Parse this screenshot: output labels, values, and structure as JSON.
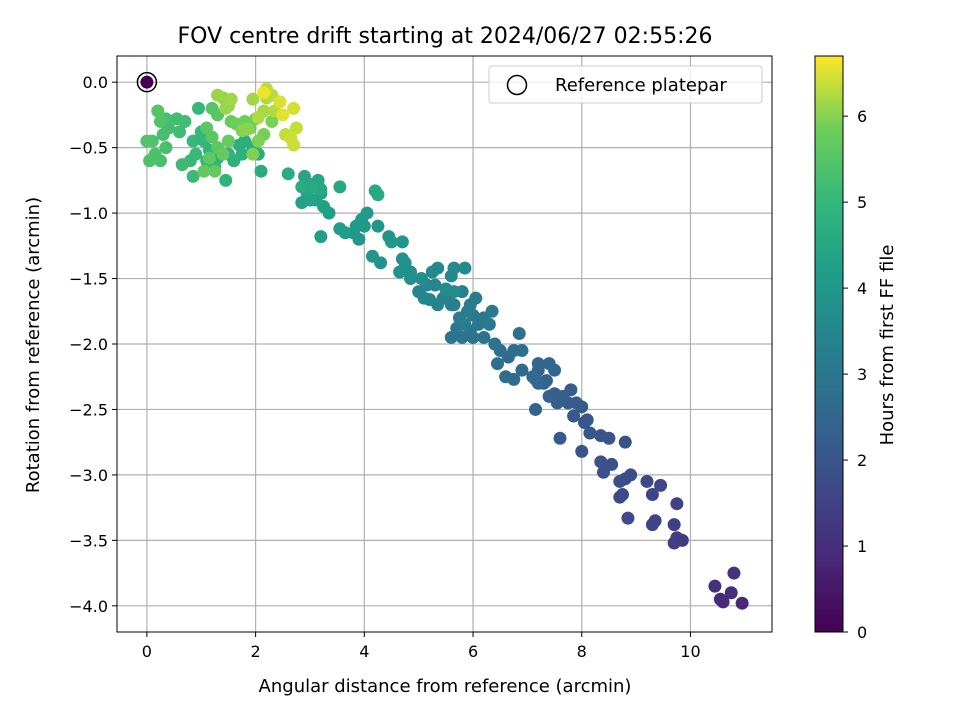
{
  "chart_data": {
    "type": "scatter",
    "title": "FOV centre drift starting at 2024/06/27 02:55:26",
    "xlabel": "Angular distance from reference (arcmin)",
    "ylabel": "Rotation from reference (arcmin)",
    "xlim": [
      -0.55,
      11.5
    ],
    "ylim": [
      -4.2,
      0.2
    ],
    "xticks": [
      0,
      2,
      4,
      6,
      8,
      10
    ],
    "yticks": [
      0.0,
      -0.5,
      -1.0,
      -1.5,
      -2.0,
      -2.5,
      -3.0,
      -3.5,
      -4.0
    ],
    "grid": true,
    "legend": {
      "position": "top-right",
      "entries": [
        "Reference platepar"
      ]
    },
    "colorbar": {
      "label": "Hours from first FF file",
      "range": [
        0,
        6.7
      ],
      "ticks": [
        0,
        1,
        2,
        3,
        4,
        5,
        6
      ],
      "colormap": "viridis"
    },
    "reference_point": {
      "x": 0,
      "y": 0,
      "hours": 0
    },
    "points": [
      [
        10.55,
        -3.95,
        0.9
      ],
      [
        10.6,
        -3.97,
        0.95
      ],
      [
        10.75,
        -3.9,
        1.0
      ],
      [
        10.95,
        -3.98,
        0.85
      ],
      [
        10.45,
        -3.85,
        1.05
      ],
      [
        10.8,
        -3.75,
        1.1
      ],
      [
        9.7,
        -3.52,
        1.35
      ],
      [
        9.75,
        -3.48,
        1.4
      ],
      [
        9.85,
        -3.5,
        1.38
      ],
      [
        9.7,
        -3.38,
        1.45
      ],
      [
        9.75,
        -3.22,
        1.5
      ],
      [
        9.3,
        -3.38,
        1.55
      ],
      [
        9.35,
        -3.35,
        1.52
      ],
      [
        9.3,
        -3.15,
        1.6
      ],
      [
        9.45,
        -3.08,
        1.62
      ],
      [
        9.2,
        -3.05,
        1.65
      ],
      [
        8.85,
        -3.33,
        1.7
      ],
      [
        8.7,
        -3.17,
        1.72
      ],
      [
        8.75,
        -3.15,
        1.75
      ],
      [
        8.7,
        -3.05,
        1.78
      ],
      [
        8.8,
        -3.03,
        1.8
      ],
      [
        8.9,
        -3.0,
        1.82
      ],
      [
        8.4,
        -2.98,
        1.85
      ],
      [
        8.55,
        -2.92,
        1.88
      ],
      [
        8.35,
        -2.9,
        1.9
      ],
      [
        8.8,
        -2.75,
        1.92
      ],
      [
        8.5,
        -2.72,
        1.95
      ],
      [
        8.35,
        -2.7,
        1.98
      ],
      [
        8.0,
        -2.82,
        2.0
      ],
      [
        8.15,
        -2.68,
        2.02
      ],
      [
        8.05,
        -2.6,
        2.05
      ],
      [
        8.1,
        -2.58,
        2.08
      ],
      [
        7.6,
        -2.72,
        2.1
      ],
      [
        7.85,
        -2.55,
        2.12
      ],
      [
        7.9,
        -2.45,
        2.15
      ],
      [
        8.0,
        -2.48,
        2.18
      ],
      [
        7.75,
        -2.45,
        2.2
      ],
      [
        7.8,
        -2.35,
        2.22
      ],
      [
        7.65,
        -2.4,
        2.25
      ],
      [
        7.5,
        -2.38,
        2.27
      ],
      [
        7.55,
        -2.45,
        2.3
      ],
      [
        7.15,
        -2.5,
        2.32
      ],
      [
        7.4,
        -2.4,
        2.35
      ],
      [
        7.3,
        -2.3,
        2.38
      ],
      [
        7.35,
        -2.28,
        2.4
      ],
      [
        7.2,
        -2.2,
        2.42
      ],
      [
        7.5,
        -2.2,
        2.45
      ],
      [
        7.4,
        -2.15,
        2.48
      ],
      [
        7.2,
        -2.15,
        2.5
      ],
      [
        7.2,
        -2.3,
        2.52
      ],
      [
        7.1,
        -2.25,
        2.55
      ],
      [
        7.15,
        -2.27,
        2.57
      ],
      [
        6.9,
        -2.2,
        2.6
      ],
      [
        6.75,
        -2.27,
        2.62
      ],
      [
        6.6,
        -2.25,
        2.65
      ],
      [
        6.65,
        -2.1,
        2.68
      ],
      [
        6.9,
        -2.05,
        2.7
      ],
      [
        6.75,
        -2.05,
        2.72
      ],
      [
        6.45,
        -2.15,
        2.75
      ],
      [
        6.5,
        -2.05,
        2.78
      ],
      [
        6.85,
        -1.92,
        2.8
      ],
      [
        6.4,
        -2.0,
        2.82
      ],
      [
        6.2,
        -1.95,
        2.85
      ],
      [
        6.0,
        -1.95,
        2.88
      ],
      [
        5.95,
        -1.9,
        2.9
      ],
      [
        5.8,
        -1.95,
        2.92
      ],
      [
        5.6,
        -1.95,
        2.95
      ],
      [
        5.7,
        -1.88,
        2.98
      ],
      [
        6.1,
        -1.85,
        3.0
      ],
      [
        6.2,
        -1.8,
        3.02
      ],
      [
        6.3,
        -1.85,
        3.05
      ],
      [
        6.35,
        -1.75,
        3.08
      ],
      [
        6.0,
        -1.78,
        3.1
      ],
      [
        5.95,
        -1.7,
        3.12
      ],
      [
        6.05,
        -1.65,
        3.15
      ],
      [
        5.9,
        -1.75,
        3.17
      ],
      [
        5.75,
        -1.8,
        3.2
      ],
      [
        5.85,
        -1.85,
        3.22
      ],
      [
        5.65,
        -1.7,
        3.25
      ],
      [
        5.55,
        -1.65,
        3.27
      ],
      [
        5.6,
        -1.7,
        3.3
      ],
      [
        5.8,
        -1.6,
        3.32
      ],
      [
        5.35,
        -1.7,
        3.35
      ],
      [
        5.45,
        -1.65,
        3.37
      ],
      [
        5.2,
        -1.66,
        3.4
      ],
      [
        5.1,
        -1.65,
        3.42
      ],
      [
        5.0,
        -1.6,
        3.45
      ],
      [
        5.3,
        -1.55,
        3.48
      ],
      [
        5.15,
        -1.55,
        3.5
      ],
      [
        5.25,
        -1.45,
        3.52
      ],
      [
        5.35,
        -1.42,
        3.55
      ],
      [
        5.6,
        -1.48,
        3.57
      ],
      [
        5.65,
        -1.42,
        3.6
      ],
      [
        5.85,
        -1.42,
        3.62
      ],
      [
        5.65,
        -1.6,
        3.65
      ],
      [
        5.5,
        -1.58,
        3.67
      ],
      [
        5.05,
        -1.5,
        3.7
      ],
      [
        4.85,
        -1.45,
        3.72
      ],
      [
        4.85,
        -1.5,
        3.75
      ],
      [
        4.65,
        -1.45,
        3.78
      ],
      [
        4.75,
        -1.38,
        3.8
      ],
      [
        4.7,
        -1.35,
        3.82
      ],
      [
        4.3,
        -1.38,
        3.85
      ],
      [
        4.15,
        -1.33,
        3.88
      ],
      [
        4.7,
        -1.22,
        3.9
      ],
      [
        4.45,
        -1.18,
        3.92
      ],
      [
        4.5,
        -1.22,
        3.95
      ],
      [
        4.25,
        -1.1,
        3.98
      ],
      [
        4.0,
        -1.1,
        4.0
      ],
      [
        3.9,
        -1.2,
        4.02
      ],
      [
        3.8,
        -1.15,
        4.05
      ],
      [
        3.85,
        -1.1,
        4.08
      ],
      [
        3.95,
        -1.05,
        4.1
      ],
      [
        4.05,
        -1.0,
        4.12
      ],
      [
        3.55,
        -1.12,
        4.15
      ],
      [
        3.65,
        -1.15,
        4.18
      ],
      [
        3.2,
        -1.18,
        4.2
      ],
      [
        3.35,
        -1.0,
        4.22
      ],
      [
        3.25,
        -0.95,
        4.25
      ],
      [
        3.1,
        -0.9,
        4.28
      ],
      [
        3.2,
        -0.85,
        4.3
      ],
      [
        3.0,
        -0.9,
        4.32
      ],
      [
        2.85,
        -0.92,
        4.35
      ],
      [
        2.95,
        -0.85,
        4.38
      ],
      [
        3.0,
        -0.78,
        4.4
      ],
      [
        2.9,
        -0.72,
        4.42
      ],
      [
        3.15,
        -0.75,
        4.45
      ],
      [
        3.2,
        -0.82,
        4.48
      ],
      [
        3.55,
        -0.8,
        4.5
      ],
      [
        4.2,
        -0.83,
        4.52
      ],
      [
        4.25,
        -0.86,
        4.55
      ],
      [
        3.05,
        -0.8,
        4.58
      ],
      [
        2.85,
        -0.8,
        4.6
      ],
      [
        2.6,
        -0.7,
        4.62
      ],
      [
        2.1,
        -0.68,
        4.65
      ],
      [
        2.05,
        -0.55,
        4.67
      ],
      [
        1.95,
        -0.5,
        4.7
      ],
      [
        1.8,
        -0.45,
        4.72
      ],
      [
        1.7,
        -0.48,
        4.75
      ],
      [
        1.75,
        -0.55,
        4.77
      ],
      [
        1.6,
        -0.6,
        4.8
      ],
      [
        1.5,
        -0.55,
        4.82
      ],
      [
        1.45,
        -0.75,
        4.85
      ],
      [
        1.3,
        -0.58,
        4.87
      ],
      [
        1.25,
        -0.65,
        4.9
      ],
      [
        1.15,
        -0.52,
        4.92
      ],
      [
        1.1,
        -0.6,
        4.95
      ],
      [
        1.05,
        -0.45,
        4.97
      ],
      [
        1.0,
        -0.38,
        5.0
      ],
      [
        0.95,
        -0.2,
        5.02
      ],
      [
        0.85,
        -0.45,
        5.05
      ],
      [
        0.9,
        -0.55,
        5.07
      ],
      [
        0.8,
        -0.6,
        5.1
      ],
      [
        0.85,
        -0.72,
        5.12
      ],
      [
        0.65,
        -0.63,
        5.15
      ],
      [
        0.6,
        -0.38,
        5.17
      ],
      [
        0.7,
        -0.3,
        5.2
      ],
      [
        0.55,
        -0.28,
        5.22
      ],
      [
        0.4,
        -0.35,
        5.25
      ],
      [
        0.35,
        -0.28,
        5.27
      ],
      [
        0.3,
        -0.4,
        5.3
      ],
      [
        0.35,
        -0.5,
        5.32
      ],
      [
        0.25,
        -0.6,
        5.35
      ],
      [
        0.15,
        -0.55,
        5.37
      ],
      [
        0.05,
        -0.6,
        5.4
      ],
      [
        0.1,
        -0.45,
        5.42
      ],
      [
        0.0,
        -0.45,
        5.45
      ],
      [
        0.25,
        -0.3,
        5.47
      ],
      [
        0.2,
        -0.22,
        5.5
      ],
      [
        1.2,
        -0.2,
        5.52
      ],
      [
        1.3,
        -0.25,
        5.55
      ],
      [
        1.1,
        -0.35,
        5.57
      ],
      [
        1.2,
        -0.42,
        5.6
      ],
      [
        1.3,
        -0.5,
        5.62
      ],
      [
        1.15,
        -0.58,
        5.65
      ],
      [
        1.05,
        -0.68,
        5.67
      ],
      [
        1.25,
        -0.68,
        5.7
      ],
      [
        1.4,
        -0.55,
        5.72
      ],
      [
        1.5,
        -0.45,
        5.75
      ],
      [
        1.55,
        -0.3,
        5.77
      ],
      [
        1.65,
        -0.32,
        5.8
      ],
      [
        1.8,
        -0.3,
        5.82
      ],
      [
        1.9,
        -0.35,
        5.85
      ],
      [
        2.0,
        -0.28,
        5.87
      ],
      [
        2.15,
        -0.4,
        5.9
      ],
      [
        2.3,
        -0.3,
        5.92
      ],
      [
        2.05,
        -0.45,
        5.95
      ],
      [
        1.95,
        -0.55,
        5.97
      ],
      [
        1.75,
        -0.37,
        6.0
      ],
      [
        1.85,
        -0.36,
        6.02
      ],
      [
        1.5,
        -0.18,
        6.05
      ],
      [
        1.4,
        -0.12,
        6.07
      ],
      [
        1.45,
        -0.2,
        6.1
      ],
      [
        1.3,
        -0.1,
        6.12
      ],
      [
        1.55,
        -0.13,
        6.15
      ],
      [
        1.95,
        -0.13,
        6.18
      ],
      [
        2.15,
        -0.22,
        6.2
      ],
      [
        2.2,
        -0.12,
        6.22
      ],
      [
        2.05,
        -0.27,
        6.25
      ],
      [
        2.35,
        -0.22,
        6.27
      ],
      [
        2.3,
        -0.1,
        6.3
      ],
      [
        2.2,
        -0.05,
        6.32
      ],
      [
        2.55,
        -0.4,
        6.35
      ],
      [
        2.75,
        -0.35,
        6.37
      ],
      [
        2.7,
        -0.48,
        6.4
      ],
      [
        2.65,
        -0.43,
        6.42
      ],
      [
        2.7,
        -0.2,
        6.45
      ],
      [
        2.45,
        -0.15,
        6.5
      ],
      [
        2.5,
        -0.25,
        6.55
      ],
      [
        2.15,
        -0.08,
        6.6
      ]
    ]
  }
}
